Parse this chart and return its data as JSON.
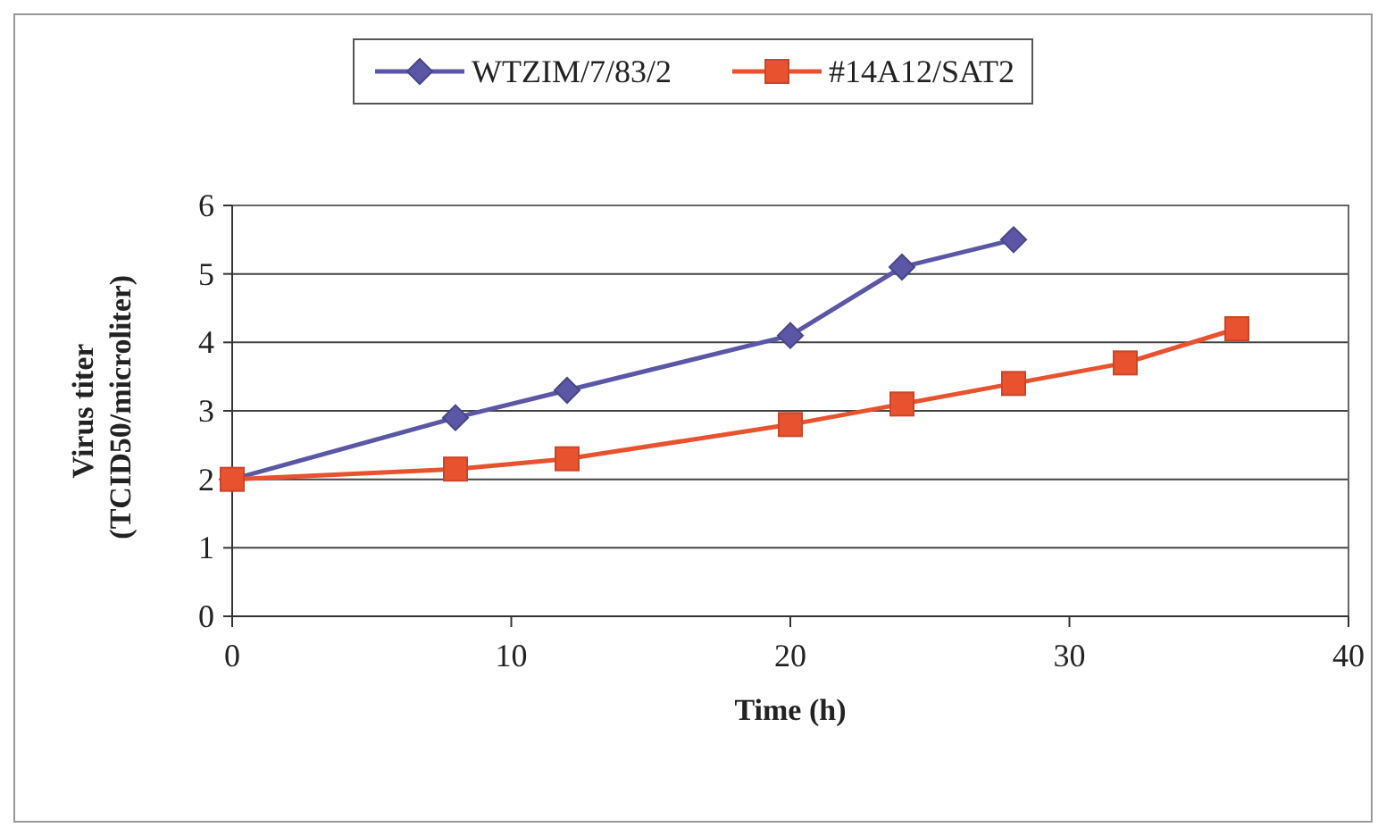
{
  "chart_data": {
    "type": "line",
    "xlabel": "Time (h)",
    "ylabel": "Virus titer (TCID50/microliter)",
    "xlim": [
      0,
      40
    ],
    "xticks": [
      0,
      10,
      20,
      30,
      40
    ],
    "ylim": [
      0,
      6
    ],
    "yticks": [
      0,
      1,
      2,
      3,
      4,
      5,
      6
    ],
    "grid": "y",
    "legend": "top",
    "series": [
      {
        "name": "WTZIM/7/83/2",
        "color": "#5b57a6",
        "marker": "diamond",
        "x": [
          0,
          8,
          12,
          20,
          24,
          28
        ],
        "values": [
          2,
          2.9,
          3.3,
          4.1,
          5.1,
          5.5
        ]
      },
      {
        "name": "#14A12/SAT2",
        "color": "#e8522f",
        "marker": "square",
        "x": [
          0,
          8,
          12,
          20,
          24,
          28,
          32,
          36
        ],
        "values": [
          2,
          2.15,
          2.3,
          2.8,
          3.1,
          3.4,
          3.7,
          4.2
        ]
      }
    ]
  }
}
